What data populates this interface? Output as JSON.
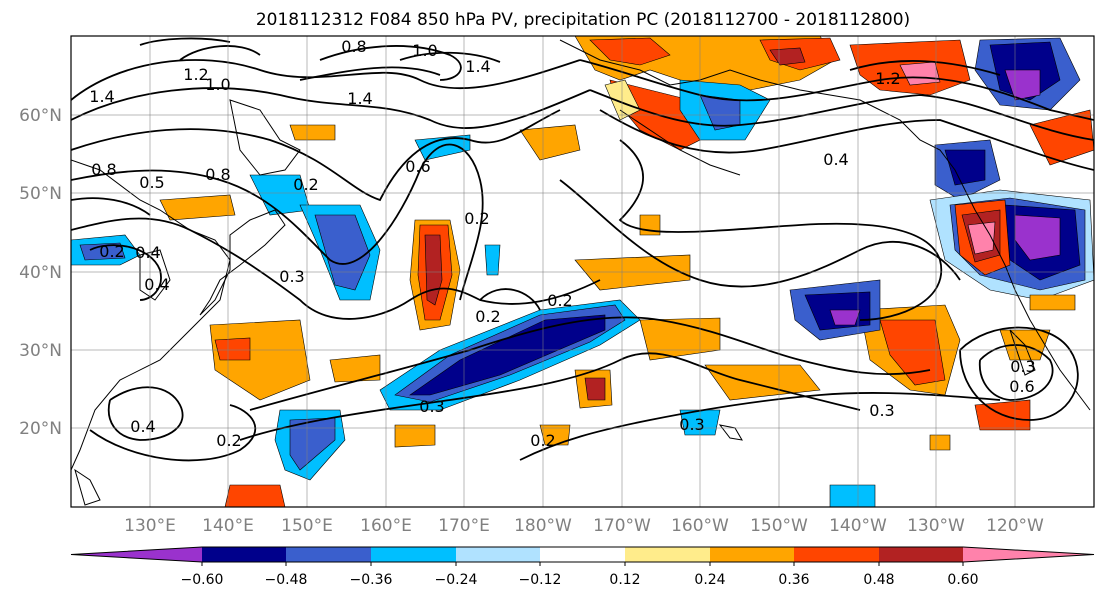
{
  "title": "2018112312 F084 850 hPa PV, precipitation PC (2018112700 - 2018112800)",
  "lat_labels": [
    "60°N",
    "50°N",
    "40°N",
    "30°N",
    "20°N"
  ],
  "lon_labels": [
    "130°E",
    "140°E",
    "150°E",
    "160°E",
    "170°E",
    "180°W",
    "170°W",
    "160°W",
    "150°W",
    "140°W",
    "130°W",
    "120°W"
  ],
  "colorbar": {
    "colors": [
      "#9a32cd",
      "#00008b",
      "#3a5fcd",
      "#00bfff",
      "#b0e2ff",
      "#ffffff",
      "#ffec8b",
      "#ffa500",
      "#ff4500",
      "#b22222",
      "#ff82ab"
    ],
    "tick_labels": [
      "−0.60",
      "−0.48",
      "−0.36",
      "−0.24",
      "−0.12",
      "0.12",
      "0.24",
      "0.36",
      "0.48",
      "0.60"
    ]
  },
  "contour_labels": [
    "0.8",
    "1.0",
    "1.2",
    "1.4",
    "1.0",
    "1.4",
    "1.4",
    "1.2",
    "0.8",
    "0.5",
    "0.8",
    "0.2",
    "0.6",
    "0.2",
    "0.4",
    "0.4",
    "0.2",
    "0.3",
    "0.4",
    "0.3",
    "0.2",
    "0.2",
    "0.3",
    "0.4",
    "0.2",
    "0.2",
    "0.3",
    "0.3",
    "0.6"
  ]
}
